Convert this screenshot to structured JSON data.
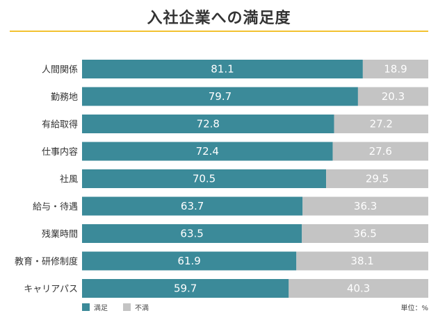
{
  "chart_data": {
    "type": "bar",
    "orientation": "horizontal",
    "stacked": true,
    "title": "入社企業への満足度",
    "categories": [
      "人間関係",
      "勤務地",
      "有給取得",
      "仕事内容",
      "社風",
      "給与・待遇",
      "残業時間",
      "教育・研修制度",
      "キャリアパス"
    ],
    "series": [
      {
        "name": "満足",
        "values": [
          81.1,
          79.7,
          72.8,
          72.4,
          70.5,
          63.7,
          63.5,
          61.9,
          59.7
        ]
      },
      {
        "name": "不満",
        "values": [
          18.9,
          20.3,
          27.2,
          27.6,
          29.5,
          36.3,
          36.5,
          38.1,
          40.3
        ]
      }
    ],
    "xlim": [
      0,
      100
    ],
    "colors": {
      "満足": "#3b8a99",
      "不満": "#c4c4c4"
    },
    "unit_label": "単位：%",
    "legend_position": "bottom-left"
  }
}
